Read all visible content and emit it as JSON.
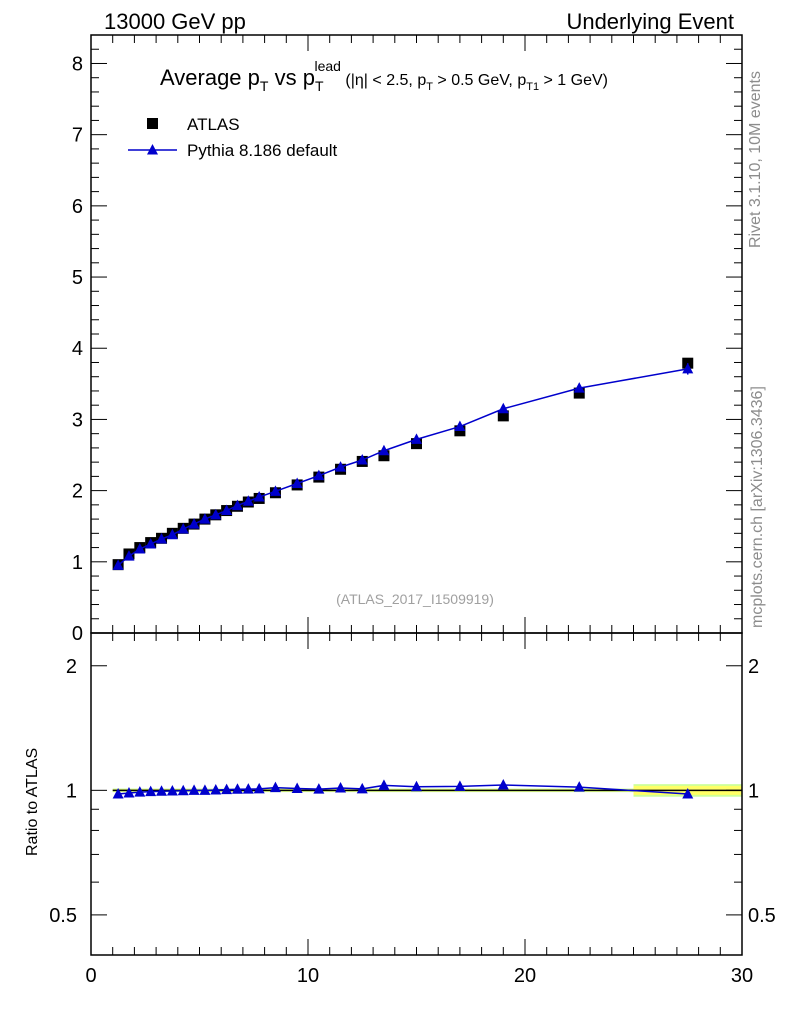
{
  "header": {
    "left": "13000 GeV pp",
    "right": "Underlying Event"
  },
  "side_labels": {
    "rivet": "Rivet 3.1.10,  10M events",
    "mcplots": "mcplots.cern.ch [arXiv:1306.3436]"
  },
  "analysis_id": "(ATLAS_2017_I1509919)",
  "colors": {
    "data": "#000000",
    "mc": "#0000cc",
    "band_inner": "#ffff66",
    "band_outer": "#ccff99"
  },
  "chart_data": [
    {
      "type": "scatter",
      "panel": "main",
      "title": {
        "pre": "Average p",
        "sub1": "T",
        "mid": " vs p",
        "sub2": "T",
        "sup2": "lead",
        "cuts": " (|η| < 2.5, p",
        "cuts_sub": "T",
        "cuts_mid": " > 0.5 GeV, p",
        "cuts_sub2": "T1",
        "cuts_end": " > 1 GeV)"
      },
      "xlim": [
        0,
        30
      ],
      "ylim": [
        0,
        8.4
      ],
      "y_ticks": [
        0,
        1,
        2,
        3,
        4,
        5,
        6,
        7,
        8
      ],
      "legend": {
        "position": "top-left",
        "entries": [
          "ATLAS",
          "Pythia 8.186 default"
        ]
      },
      "x": [
        1.25,
        1.75,
        2.25,
        2.75,
        3.25,
        3.75,
        4.25,
        4.75,
        5.25,
        5.75,
        6.25,
        6.75,
        7.25,
        7.75,
        8.5,
        9.5,
        10.5,
        11.5,
        12.5,
        13.5,
        15.0,
        17.0,
        19.0,
        22.5,
        27.5
      ],
      "series": [
        {
          "name": "ATLAS",
          "marker": "square",
          "values": [
            0.96,
            1.11,
            1.2,
            1.27,
            1.33,
            1.4,
            1.47,
            1.53,
            1.6,
            1.66,
            1.72,
            1.78,
            1.84,
            1.89,
            1.97,
            2.08,
            2.19,
            2.3,
            2.41,
            2.49,
            2.66,
            2.84,
            3.05,
            3.37,
            3.79
          ]
        },
        {
          "name": "Pythia 8.186 default",
          "marker": "triangle",
          "values": [
            0.95,
            1.08,
            1.18,
            1.25,
            1.32,
            1.38,
            1.46,
            1.53,
            1.6,
            1.66,
            1.72,
            1.79,
            1.85,
            1.91,
            1.99,
            2.1,
            2.21,
            2.33,
            2.43,
            2.56,
            2.72,
            2.9,
            3.15,
            3.44,
            3.71
          ],
          "errors": [
            0,
            0,
            0,
            0,
            0,
            0,
            0,
            0,
            0,
            0,
            0,
            0,
            0,
            0,
            0,
            0,
            0,
            0,
            0,
            0,
            0,
            0,
            0,
            0.03,
            0.08
          ]
        }
      ]
    },
    {
      "type": "line",
      "panel": "ratio",
      "ylabel": "Ratio to ATLAS",
      "scale": "log",
      "xlim": [
        0,
        30
      ],
      "ylim": [
        0.4,
        2.4
      ],
      "y_ticks": [
        0.5,
        1,
        2
      ],
      "y_tick_labels": [
        "0.5",
        "1",
        "2"
      ],
      "x_ticks": [
        0,
        10,
        20,
        30
      ],
      "x_tick_labels": [
        "0",
        "10",
        "20",
        "30"
      ],
      "band": {
        "x_edges": [
          1.0,
          25.0,
          25.0,
          30.0
        ],
        "inner_halfwidth": [
          0.006,
          0.006,
          0.025,
          0.025
        ],
        "outer_halfwidth": [
          0.01,
          0.01,
          0.035,
          0.035
        ]
      },
      "series": [
        {
          "name": "Pythia 8.186 default / ATLAS",
          "values": [
            0.98,
            0.985,
            0.99,
            0.993,
            0.995,
            0.996,
            0.998,
            1.0,
            1.0,
            1.002,
            1.004,
            1.006,
            1.007,
            1.008,
            1.015,
            1.01,
            1.007,
            1.013,
            1.008,
            1.028,
            1.02,
            1.022,
            1.03,
            1.018,
            0.98
          ],
          "errors": [
            0,
            0,
            0,
            0,
            0,
            0,
            0,
            0,
            0,
            0,
            0,
            0,
            0,
            0,
            0,
            0,
            0,
            0,
            0,
            0,
            0,
            0,
            0,
            0.005,
            0.02
          ]
        }
      ]
    }
  ]
}
